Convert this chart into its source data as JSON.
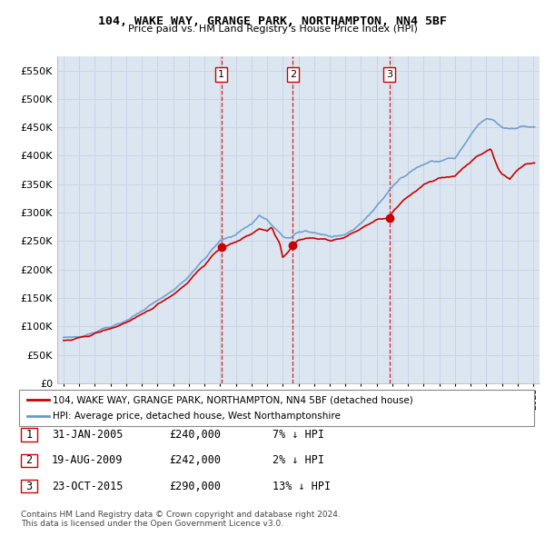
{
  "title": "104, WAKE WAY, GRANGE PARK, NORTHAMPTON, NN4 5BF",
  "subtitle": "Price paid vs. HM Land Registry's House Price Index (HPI)",
  "legend_line1": "104, WAKE WAY, GRANGE PARK, NORTHAMPTON, NN4 5BF (detached house)",
  "legend_line2": "HPI: Average price, detached house, West Northamptonshire",
  "table": [
    {
      "num": "1",
      "date": "31-JAN-2005",
      "price": "£240,000",
      "pct": "7% ↓ HPI"
    },
    {
      "num": "2",
      "date": "19-AUG-2009",
      "price": "£242,000",
      "pct": "2% ↓ HPI"
    },
    {
      "num": "3",
      "date": "23-OCT-2015",
      "price": "£290,000",
      "pct": "13% ↓ HPI"
    }
  ],
  "footnote": "Contains HM Land Registry data © Crown copyright and database right 2024.\nThis data is licensed under the Open Government Licence v3.0.",
  "vline_years": [
    2005.08,
    2009.64,
    2015.81
  ],
  "sale_points_red": [
    [
      2005.08,
      240000
    ],
    [
      2009.64,
      242000
    ],
    [
      2015.81,
      290000
    ]
  ],
  "red_color": "#cc0000",
  "blue_color": "#6699cc",
  "grid_color": "#c8d4e8",
  "bg_color": "#dce6f0",
  "ylim": [
    0,
    575000
  ],
  "yticks": [
    0,
    50000,
    100000,
    150000,
    200000,
    250000,
    300000,
    350000,
    400000,
    450000,
    500000,
    550000
  ],
  "xlim_start": 1994.6,
  "xlim_end": 2025.4
}
